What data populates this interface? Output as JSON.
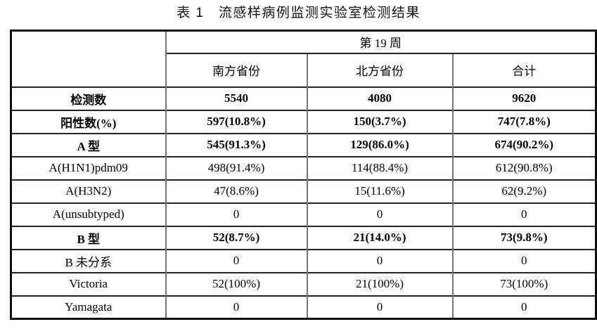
{
  "title": "表 1　流感样病例监测实验室检测结果",
  "table": {
    "week_header": "第 19 周",
    "columns": [
      "南方省份",
      "北方省份",
      "合计"
    ],
    "rows": [
      {
        "label": "检测数",
        "bold": true,
        "values": [
          "5540",
          "4080",
          "9620"
        ]
      },
      {
        "label": "阳性数(%)",
        "bold": true,
        "values": [
          "597(10.8%)",
          "150(3.7%)",
          "747(7.8%)"
        ]
      },
      {
        "label": "A 型",
        "bold": true,
        "values": [
          "545(91.3%)",
          "129(86.0%)",
          "674(90.2%)"
        ]
      },
      {
        "label": "A(H1N1)pdm09",
        "bold": false,
        "values": [
          "498(91.4%)",
          "114(88.4%)",
          "612(90.8%)"
        ]
      },
      {
        "label": "A(H3N2)",
        "bold": false,
        "values": [
          "47(8.6%)",
          "15(11.6%)",
          "62(9.2%)"
        ]
      },
      {
        "label": "A(unsubtyped)",
        "bold": false,
        "values": [
          "0",
          "0",
          "0"
        ]
      },
      {
        "label": "B 型",
        "bold": true,
        "values": [
          "52(8.7%)",
          "21(14.0%)",
          "73(9.8%)"
        ]
      },
      {
        "label": "B 未分系",
        "bold": false,
        "values": [
          "0",
          "0",
          "0"
        ]
      },
      {
        "label": "Victoria",
        "bold": false,
        "values": [
          "52(100%)",
          "21(100%)",
          "73(100%)"
        ]
      },
      {
        "label": "Yamagata",
        "bold": false,
        "values": [
          "0",
          "0",
          "0"
        ]
      }
    ]
  }
}
